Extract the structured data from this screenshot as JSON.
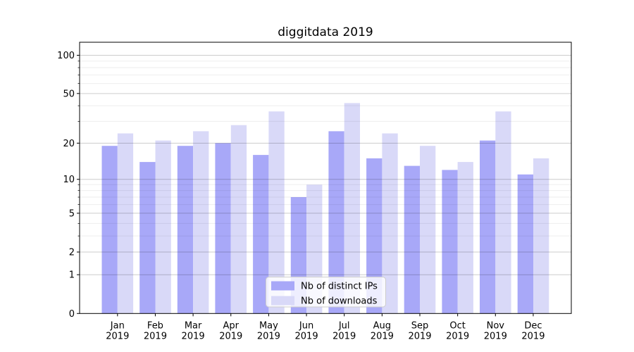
{
  "chart_data": {
    "type": "bar",
    "title": "diggitdata 2019",
    "categories": [
      "Jan",
      "Feb",
      "Mar",
      "Apr",
      "May",
      "Jun",
      "Jul",
      "Aug",
      "Sep",
      "Oct",
      "Nov",
      "Dec"
    ],
    "category_year_label": "2019",
    "series": [
      {
        "name": "Nb of distinct IPs",
        "color": "#a8a8f8",
        "values": [
          19,
          14,
          19,
          20,
          16,
          7,
          25,
          15,
          13,
          12,
          21,
          11
        ]
      },
      {
        "name": "Nb of downloads",
        "color": "#d9d9f8",
        "values": [
          24,
          21,
          25,
          28,
          36,
          9,
          42,
          24,
          19,
          14,
          36,
          15
        ]
      }
    ],
    "xlabel": "",
    "ylabel": "",
    "y_axis": {
      "scale": "log1p",
      "tick_values": [
        0,
        1,
        2,
        5,
        10,
        20,
        50,
        100
      ],
      "minor_gridline_values": [
        3,
        4,
        6,
        7,
        8,
        9,
        30,
        40,
        60,
        70,
        80,
        90
      ],
      "ylim": [
        0,
        127
      ]
    },
    "grid": "on",
    "legend": {
      "position": "lower center",
      "entries": [
        "Nb of distinct IPs",
        "Nb of downloads"
      ]
    }
  }
}
